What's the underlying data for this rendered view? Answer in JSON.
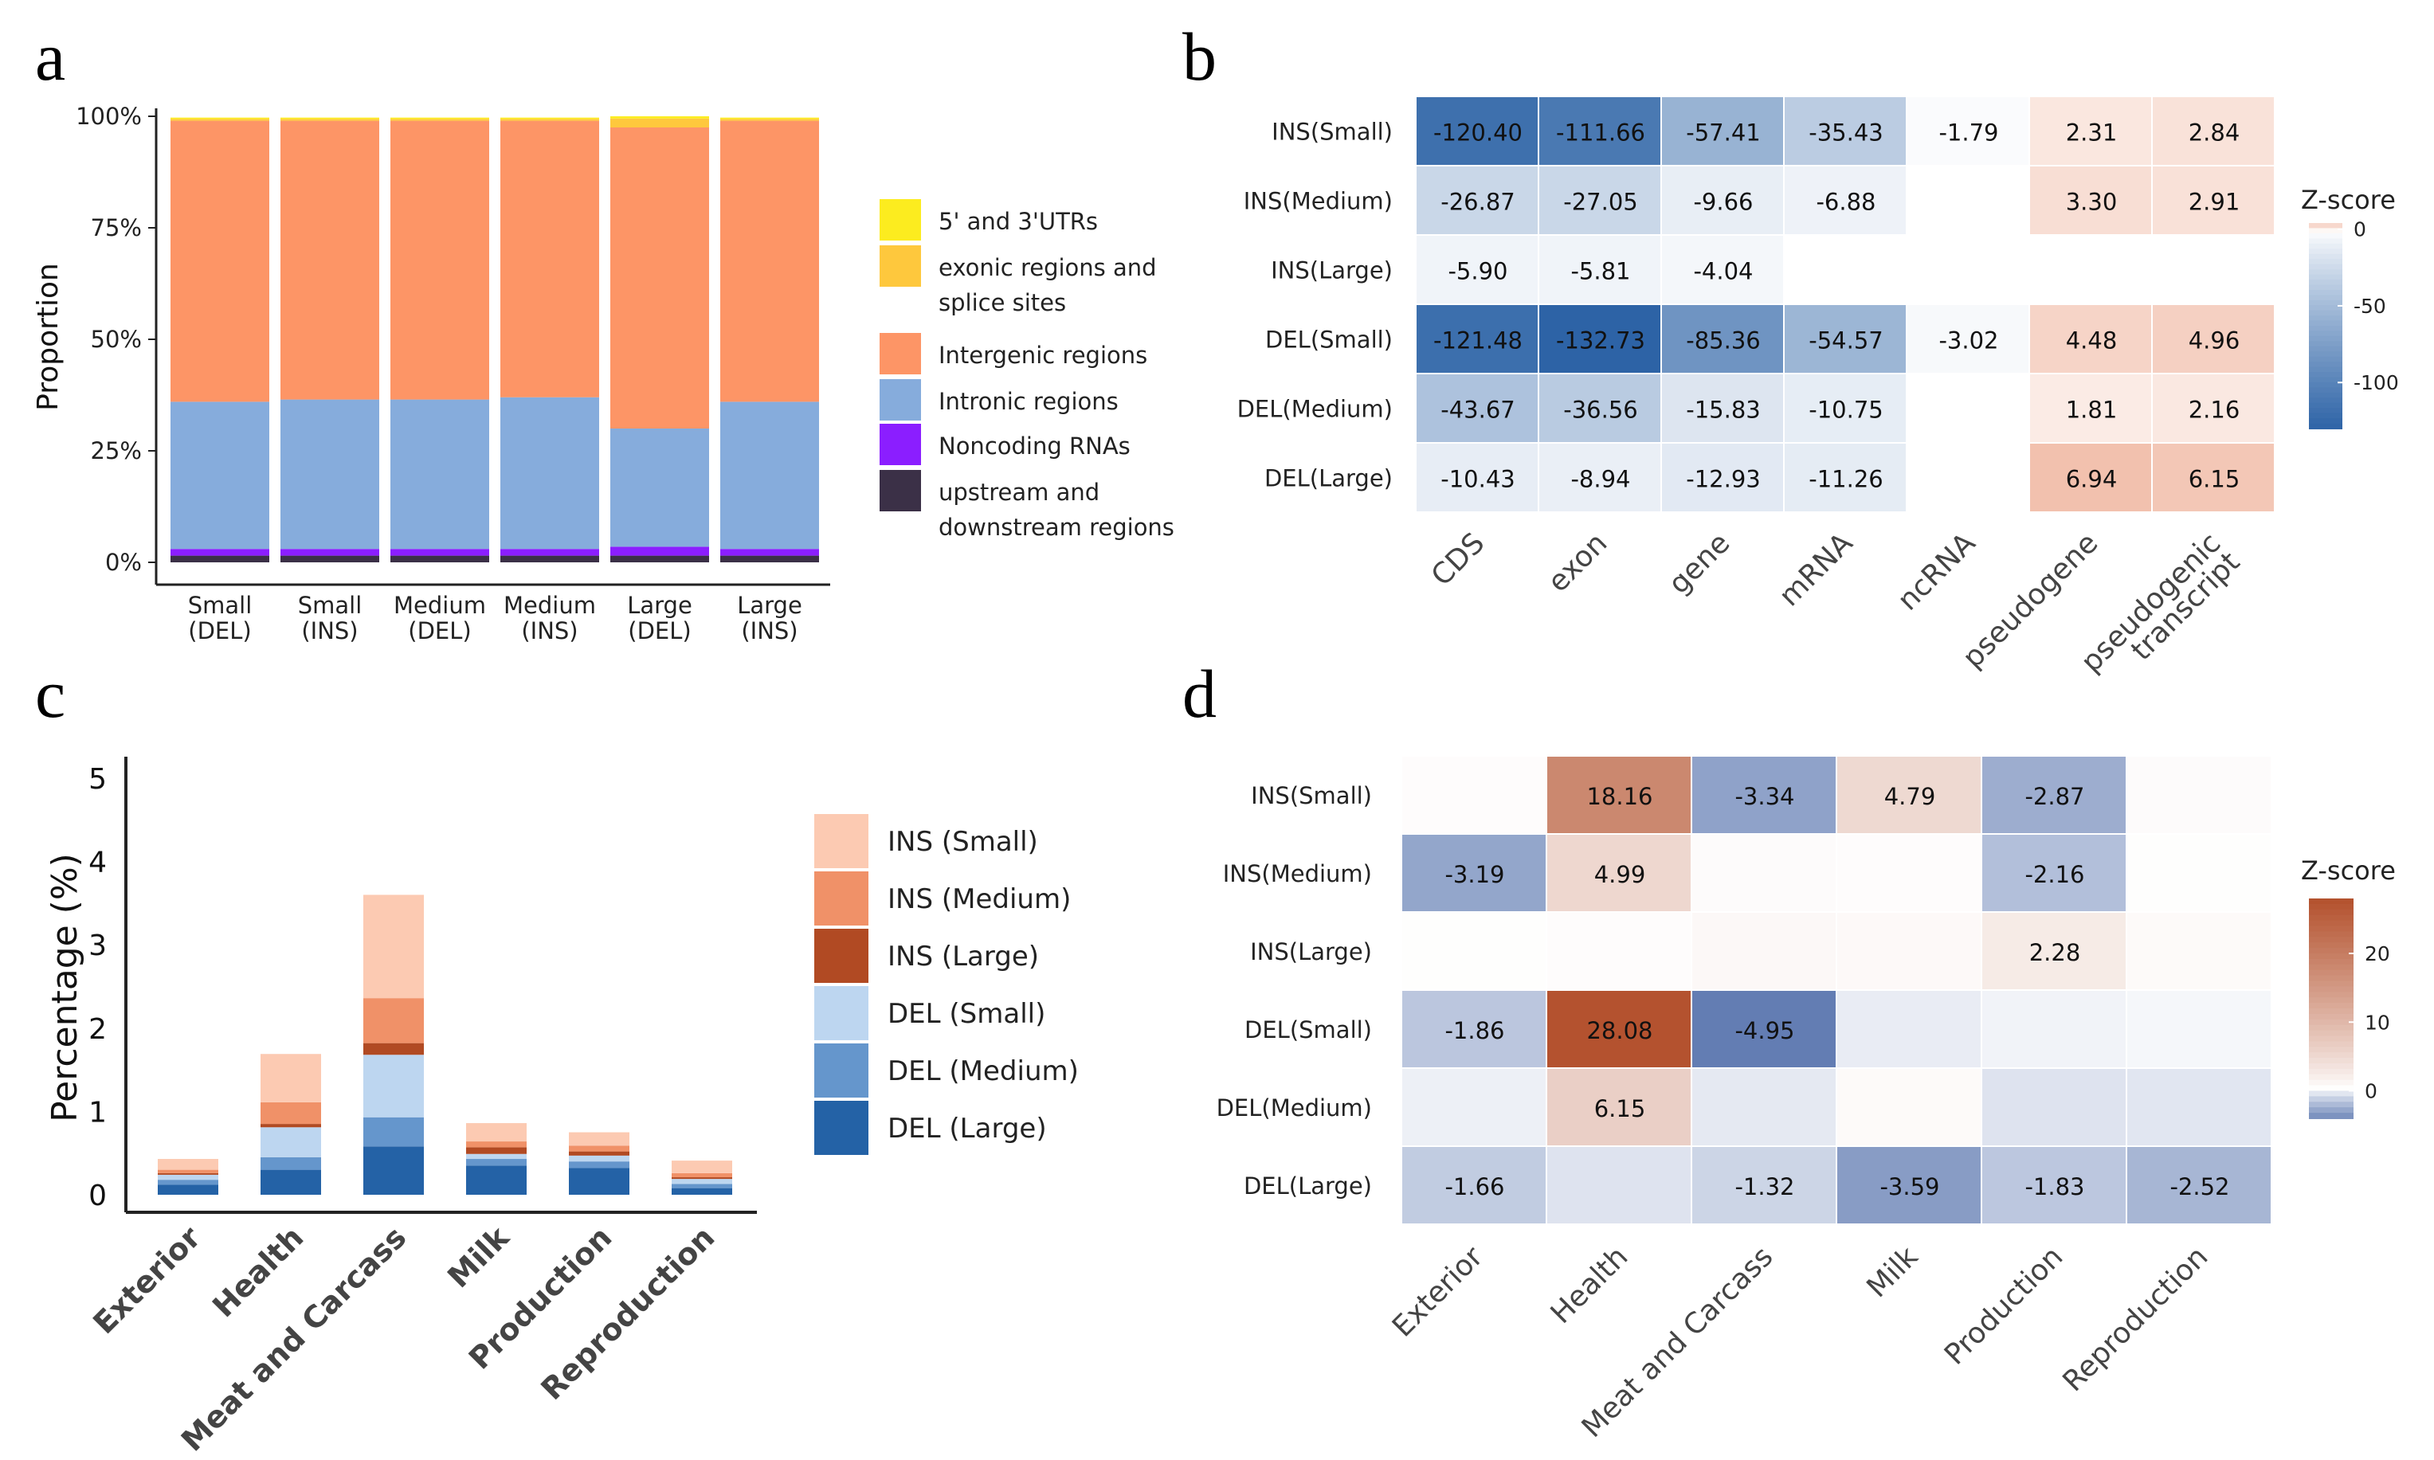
{
  "panel_labels": [
    "a",
    "b",
    "c",
    "d"
  ],
  "chart_data": [
    {
      "panel": "a",
      "type": "bar",
      "stacked": true,
      "ylabel": "Proportion",
      "yticks": [
        "0%",
        "25%",
        "50%",
        "75%",
        "100%"
      ],
      "ylim": [
        0,
        1
      ],
      "categories": [
        {
          "line1": "Small",
          "line2": "(DEL)"
        },
        {
          "line1": "Small",
          "line2": "(INS)"
        },
        {
          "line1": "Medium",
          "line2": "(DEL)"
        },
        {
          "line1": "Medium",
          "line2": "(INS)"
        },
        {
          "line1": "Large",
          "line2": "(DEL)"
        },
        {
          "line1": "Large",
          "line2": "(INS)"
        }
      ],
      "series": [
        {
          "name": "upstream and downstream regions",
          "legend_lines": [
            "upstream and",
            "downstream regions"
          ],
          "color": "#3b3047",
          "values": [
            0.015,
            0.015,
            0.015,
            0.015,
            0.015,
            0.015
          ]
        },
        {
          "name": "Noncoding RNAs",
          "legend_lines": [
            "Noncoding RNAs"
          ],
          "color": "#8b1eff",
          "values": [
            0.015,
            0.015,
            0.015,
            0.015,
            0.02,
            0.015
          ]
        },
        {
          "name": "Intronic regions",
          "legend_lines": [
            "Intronic regions"
          ],
          "color": "#86acdc",
          "values": [
            0.33,
            0.335,
            0.335,
            0.34,
            0.265,
            0.33
          ]
        },
        {
          "name": "Intergenic regions",
          "legend_lines": [
            "Intergenic regions"
          ],
          "color": "#fd9566",
          "values": [
            0.63,
            0.625,
            0.625,
            0.62,
            0.675,
            0.63
          ]
        },
        {
          "name": "exonic regions and splice sites",
          "legend_lines": [
            "exonic regions and",
            "splice sites"
          ],
          "color": "#fec83d",
          "values": [
            0.004,
            0.004,
            0.004,
            0.004,
            0.02,
            0.004
          ]
        },
        {
          "name": "5' and 3'UTRs",
          "legend_lines": [
            "5' and 3'UTRs"
          ],
          "color": "#fcec1f",
          "values": [
            0.003,
            0.003,
            0.003,
            0.003,
            0.005,
            0.003
          ]
        }
      ]
    },
    {
      "panel": "b",
      "type": "heatmap",
      "colorbar_title": "Z-score",
      "colorbar_ticks": [
        "0",
        "-50",
        "-100"
      ],
      "colorbar_tick_values": [
        0,
        -50,
        -100
      ],
      "zlim": [
        -135,
        8
      ],
      "rows": [
        "INS(Small)",
        "INS(Medium)",
        "INS(Large)",
        "DEL(Small)",
        "DEL(Medium)",
        "DEL(Large)"
      ],
      "columns": [
        [
          "CDS"
        ],
        [
          "exon"
        ],
        [
          "gene"
        ],
        [
          "mRNA"
        ],
        [
          "ncRNA"
        ],
        [
          "pseudogene"
        ],
        [
          "pseudogenic",
          "transcript"
        ]
      ],
      "values": [
        [
          -120.4,
          -111.66,
          -57.41,
          -35.43,
          -1.79,
          2.31,
          2.84
        ],
        [
          -26.87,
          -27.05,
          -9.66,
          -6.88,
          null,
          3.3,
          2.91
        ],
        [
          -5.9,
          -5.81,
          -4.04,
          null,
          null,
          null,
          null
        ],
        [
          -121.48,
          -132.73,
          -85.36,
          -54.57,
          -3.02,
          4.48,
          4.96
        ],
        [
          -43.67,
          -36.56,
          -15.83,
          -10.75,
          null,
          1.81,
          2.16
        ],
        [
          -10.43,
          -8.94,
          -12.93,
          -11.26,
          null,
          6.94,
          6.15
        ]
      ],
      "labels": [
        [
          "-120.40",
          "-111.66",
          "-57.41",
          "-35.43",
          "-1.79",
          "2.31",
          "2.84"
        ],
        [
          "-26.87",
          "-27.05",
          "-9.66",
          "-6.88",
          "",
          "3.30",
          "2.91"
        ],
        [
          "-5.90",
          "-5.81",
          "-4.04",
          "",
          "",
          "",
          ""
        ],
        [
          "-121.48",
          "-132.73",
          "-85.36",
          "-54.57",
          "-3.02",
          "4.48",
          "4.96"
        ],
        [
          "-43.67",
          "-36.56",
          "-15.83",
          "-10.75",
          "",
          "1.81",
          "2.16"
        ],
        [
          "-10.43",
          "-8.94",
          "-12.93",
          "-11.26",
          "",
          "6.94",
          "6.15"
        ]
      ]
    },
    {
      "panel": "c",
      "type": "bar",
      "stacked": true,
      "ylabel": "Percentage (%)",
      "yticks": [
        "0",
        "1",
        "2",
        "3",
        "4",
        "5"
      ],
      "ylim": [
        0,
        5
      ],
      "categories": [
        "Exterior",
        "Health",
        "Meat and Carcass",
        "Milk",
        "Production",
        "Reproduction"
      ],
      "series": [
        {
          "name": "DEL (Large)",
          "color": "#2462a6",
          "values": [
            0.12,
            0.3,
            0.58,
            0.35,
            0.32,
            0.08
          ]
        },
        {
          "name": "DEL (Medium)",
          "color": "#6596cc",
          "values": [
            0.06,
            0.15,
            0.35,
            0.08,
            0.08,
            0.05
          ]
        },
        {
          "name": "DEL (Small)",
          "color": "#bdd6f0",
          "values": [
            0.06,
            0.36,
            0.75,
            0.06,
            0.07,
            0.06
          ]
        },
        {
          "name": "INS (Large)",
          "color": "#b14a23",
          "values": [
            0.02,
            0.04,
            0.14,
            0.08,
            0.05,
            0.02
          ]
        },
        {
          "name": "INS (Medium)",
          "color": "#f09168",
          "values": [
            0.04,
            0.26,
            0.54,
            0.07,
            0.07,
            0.05
          ]
        },
        {
          "name": "INS (Small)",
          "color": "#fccab2",
          "values": [
            0.13,
            0.58,
            1.24,
            0.22,
            0.16,
            0.15
          ]
        }
      ],
      "legend_order": [
        "INS (Small)",
        "INS (Medium)",
        "INS (Large)",
        "DEL (Small)",
        "DEL (Medium)",
        "DEL (Large)"
      ]
    },
    {
      "panel": "d",
      "type": "heatmap",
      "colorbar_title": "Z-score",
      "colorbar_ticks": [
        "20",
        "10",
        "0"
      ],
      "colorbar_tick_values": [
        20,
        10,
        0
      ],
      "zlim": [
        -6,
        28.5
      ],
      "rows": [
        "INS(Small)",
        "INS(Medium)",
        "INS(Large)",
        "DEL(Small)",
        "DEL(Medium)",
        "DEL(Large)"
      ],
      "columns": [
        [
          "Exterior"
        ],
        [
          "Health"
        ],
        [
          "Meat and Carcass"
        ],
        [
          "Milk"
        ],
        [
          "Production"
        ],
        [
          "Reproduction"
        ]
      ],
      "values": [
        [
          0.2,
          18.16,
          -3.34,
          4.79,
          -2.87,
          0.3
        ],
        [
          -3.19,
          4.99,
          0.3,
          0.2,
          -2.16,
          0.1
        ],
        [
          0.1,
          0.2,
          0.6,
          0.5,
          2.28,
          0.4
        ],
        [
          -1.86,
          28.08,
          -4.95,
          -0.5,
          -0.3,
          -0.2
        ],
        [
          -0.4,
          6.15,
          -0.6,
          0.4,
          -0.8,
          -0.7
        ],
        [
          -1.66,
          -0.8,
          -1.32,
          -3.59,
          -1.83,
          -2.52
        ]
      ],
      "labels": [
        [
          "",
          "18.16",
          "-3.34",
          "4.79",
          "-2.87",
          ""
        ],
        [
          "-3.19",
          "4.99",
          "",
          "",
          "-2.16",
          ""
        ],
        [
          "",
          "",
          "",
          "",
          "2.28",
          ""
        ],
        [
          "-1.86",
          "28.08",
          "-4.95",
          "",
          "",
          ""
        ],
        [
          "",
          "6.15",
          "",
          "",
          "",
          ""
        ],
        [
          "-1.66",
          "",
          "-1.32",
          "-3.59",
          "-1.83",
          "-2.52"
        ]
      ]
    }
  ]
}
